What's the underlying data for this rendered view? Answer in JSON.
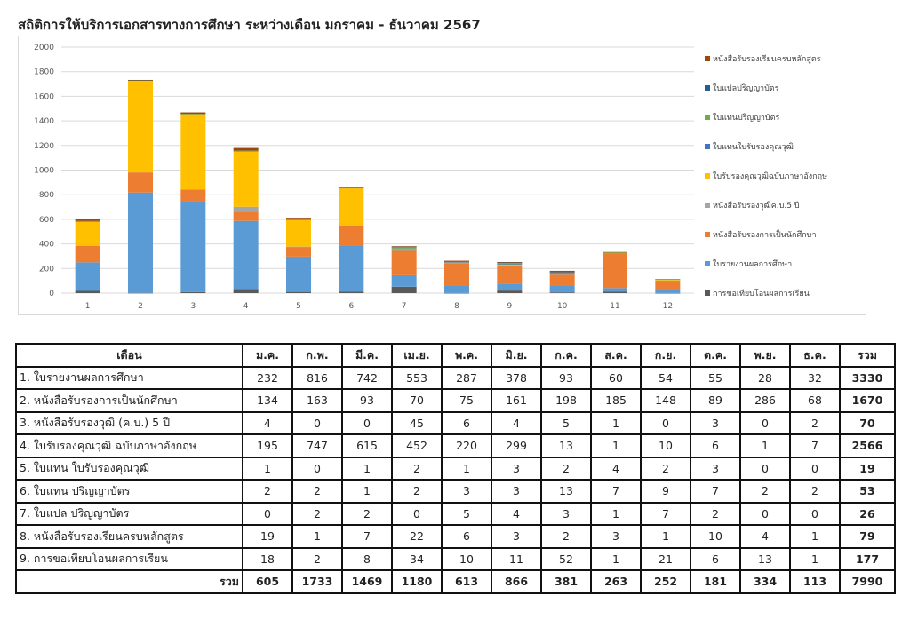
{
  "title": "สถิติการให้บริการเอกสารทางการศึกษา ระหว่างเดือน มกราคม - ธันวาคม 2567",
  "chart_data": {
    "type": "bar",
    "stacked": true,
    "categories": [
      "1",
      "2",
      "3",
      "4",
      "5",
      "6",
      "7",
      "8",
      "9",
      "10",
      "11",
      "12"
    ],
    "ylim": [
      0,
      2000
    ],
    "yticks": [
      0,
      200,
      400,
      600,
      800,
      1000,
      1200,
      1400,
      1600,
      1800,
      2000
    ],
    "grid": true,
    "legend_position": "right",
    "series": [
      {
        "name": "การขอเทียบโอนผลการเรียน",
        "color": "#595959",
        "values": [
          18,
          2,
          8,
          34,
          10,
          11,
          52,
          1,
          21,
          6,
          13,
          1
        ]
      },
      {
        "name": "ใบรายงานผลการศึกษา",
        "color": "#5b9bd5",
        "values": [
          232,
          816,
          742,
          553,
          287,
          378,
          93,
          60,
          54,
          55,
          28,
          32
        ]
      },
      {
        "name": "หนังสือรับรองการเป็นนักศึกษา",
        "color": "#ed7d31",
        "values": [
          134,
          163,
          93,
          70,
          75,
          161,
          198,
          185,
          148,
          89,
          286,
          68
        ]
      },
      {
        "name": "หนังสือรับรองวุฒิค.บ.5 ปี",
        "color": "#a5a5a5",
        "values": [
          4,
          0,
          0,
          45,
          6,
          4,
          5,
          1,
          0,
          3,
          0,
          2
        ]
      },
      {
        "name": "ใบรับรองคุณวุฒิฉบับภาษาอังกฤษ",
        "color": "#ffc000",
        "values": [
          195,
          747,
          615,
          452,
          220,
          299,
          13,
          1,
          10,
          6,
          1,
          7
        ]
      },
      {
        "name": "ใบแทนใบรับรองคุณวุฒิ",
        "color": "#4472c4",
        "values": [
          1,
          0,
          1,
          2,
          1,
          3,
          2,
          4,
          2,
          3,
          0,
          0
        ]
      },
      {
        "name": "ใบแทนปริญญาบัตร",
        "color": "#70ad47",
        "values": [
          2,
          2,
          1,
          2,
          3,
          3,
          13,
          7,
          9,
          7,
          2,
          2
        ]
      },
      {
        "name": "ใบแปลปริญญาบัตร",
        "color": "#255e91",
        "values": [
          0,
          2,
          2,
          0,
          5,
          4,
          3,
          1,
          7,
          2,
          0,
          0
        ]
      },
      {
        "name": "หนังสือรับรองเรียนครบหลักสูตร",
        "color": "#9e480e",
        "values": [
          19,
          1,
          7,
          22,
          6,
          3,
          2,
          3,
          1,
          10,
          4,
          1
        ]
      }
    ]
  },
  "table": {
    "header": [
      "เดือน",
      "ม.ค.",
      "ก.พ.",
      "มี.ค.",
      "เม.ย.",
      "พ.ค.",
      "มิ.ย.",
      "ก.ค.",
      "ส.ค.",
      "ก.ย.",
      "ต.ค.",
      "พ.ย.",
      "ธ.ค.",
      "รวม"
    ],
    "rows": [
      [
        "1. ใบรายงานผลการศึกษา",
        "232",
        "816",
        "742",
        "553",
        "287",
        "378",
        "93",
        "60",
        "54",
        "55",
        "28",
        "32",
        "3330"
      ],
      [
        "2. หนังสือรับรองการเป็นนักศึกษา",
        "134",
        "163",
        "93",
        "70",
        "75",
        "161",
        "198",
        "185",
        "148",
        "89",
        "286",
        "68",
        "1670"
      ],
      [
        "3. หนังสือรับรองวุฒิ (ค.บ.) 5 ปี",
        "4",
        "0",
        "0",
        "45",
        "6",
        "4",
        "5",
        "1",
        "0",
        "3",
        "0",
        "2",
        "70"
      ],
      [
        "4. ใบรับรองคุณวุฒิ ฉบับภาษาอังกฤษ",
        "195",
        "747",
        "615",
        "452",
        "220",
        "299",
        "13",
        "1",
        "10",
        "6",
        "1",
        "7",
        "2566"
      ],
      [
        "5. ใบแทน ใบรับรองคุณวุฒิ",
        "1",
        "0",
        "1",
        "2",
        "1",
        "3",
        "2",
        "4",
        "2",
        "3",
        "0",
        "0",
        "19"
      ],
      [
        "6. ใบแทน ปริญญาบัตร",
        "2",
        "2",
        "1",
        "2",
        "3",
        "3",
        "13",
        "7",
        "9",
        "7",
        "2",
        "2",
        "53"
      ],
      [
        "7. ใบแปล ปริญญาบัตร",
        "0",
        "2",
        "2",
        "0",
        "5",
        "4",
        "3",
        "1",
        "7",
        "2",
        "0",
        "0",
        "26"
      ],
      [
        "8. หนังสือรับรองเรียนครบหลักสูตร",
        "19",
        "1",
        "7",
        "22",
        "6",
        "3",
        "2",
        "3",
        "1",
        "10",
        "4",
        "1",
        "79"
      ],
      [
        "9. การขอเทียบโอนผลการเรียน",
        "18",
        "2",
        "8",
        "34",
        "10",
        "11",
        "52",
        "1",
        "21",
        "6",
        "13",
        "1",
        "177"
      ],
      [
        "รวม",
        "605",
        "1733",
        "1469",
        "1180",
        "613",
        "866",
        "381",
        "263",
        "252",
        "181",
        "334",
        "113",
        "7990"
      ]
    ]
  }
}
